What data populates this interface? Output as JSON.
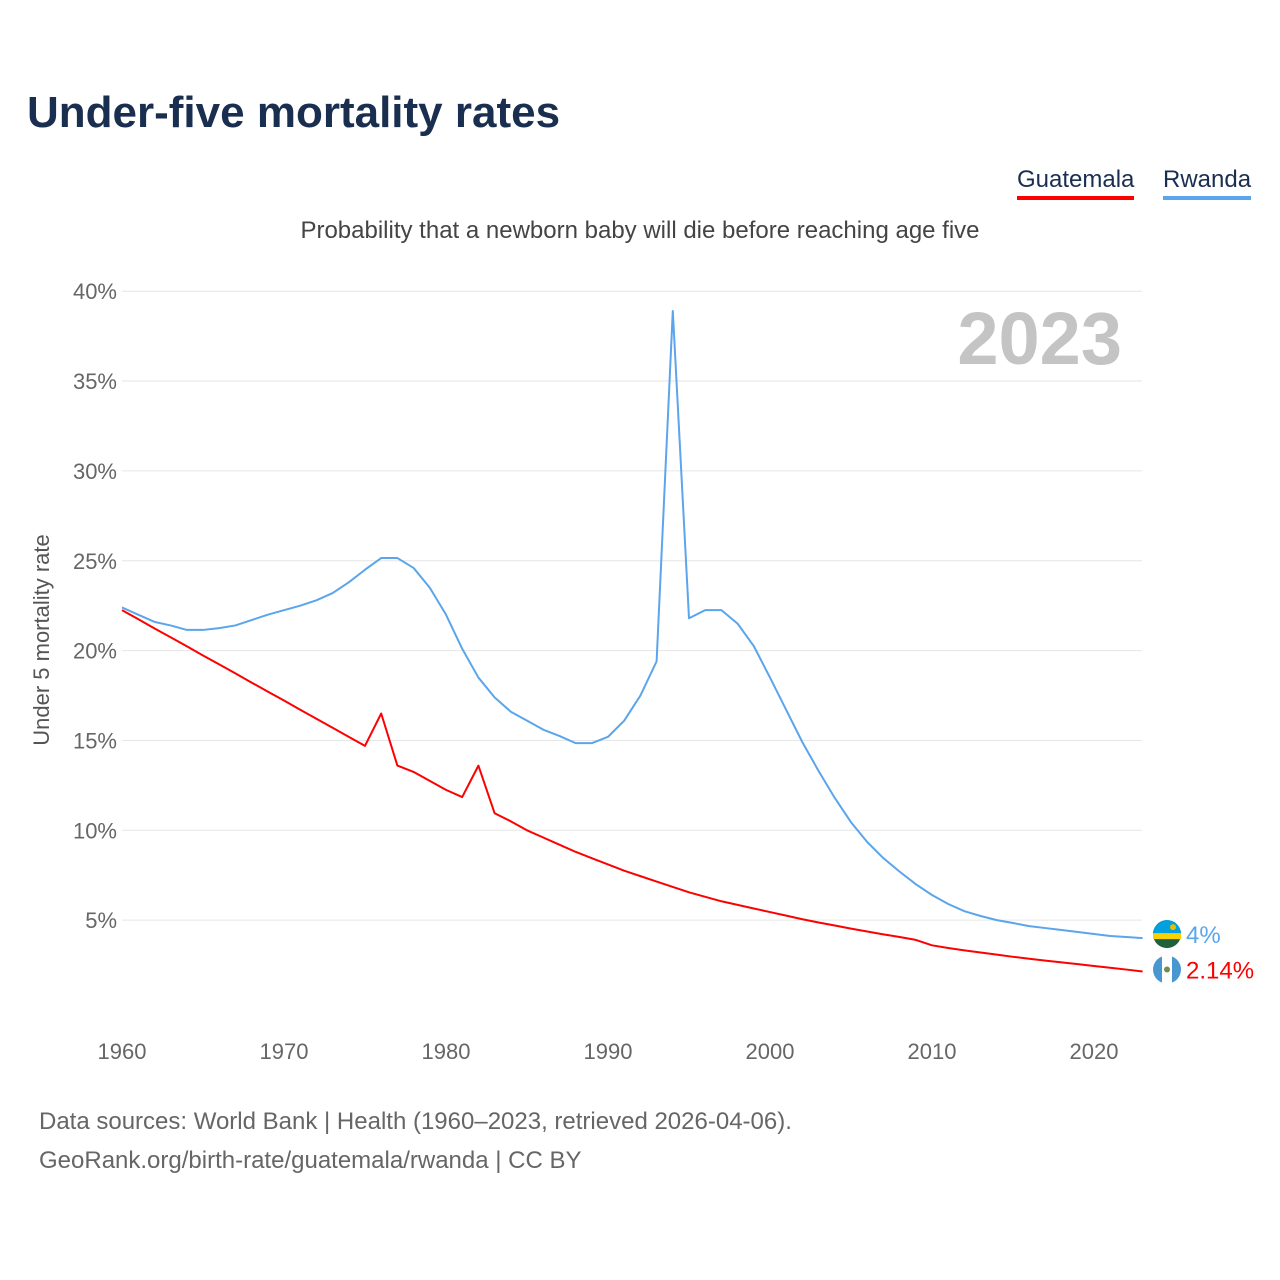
{
  "title": "Under-five mortality rates",
  "subtitle": "Probability that a newborn baby will die before reaching age five",
  "current_year": "2023",
  "sources": [
    "Data sources: World Bank | Health (1960–2023, retrieved 2026-04-06).",
    "GeoRank.org/birth-rate/guatemala/rwanda | CC BY"
  ],
  "chart_data": {
    "type": "line",
    "title": "Under-five mortality rates",
    "ylabel": "Under 5 mortality rate",
    "xlabel": "",
    "ylim": [
      0,
      40
    ],
    "xlim": [
      1960,
      2023
    ],
    "yticks": [
      "5%",
      "10%",
      "15%",
      "20%",
      "25%",
      "30%",
      "35%",
      "40%"
    ],
    "ytick_values": [
      5,
      10,
      15,
      20,
      25,
      30,
      35,
      40
    ],
    "xticks": [
      "1960",
      "1970",
      "1980",
      "1990",
      "2000",
      "2010",
      "2020"
    ],
    "xtick_values": [
      1960,
      1970,
      1980,
      1990,
      2000,
      2010,
      2020
    ],
    "grid": true,
    "legend_position": "top-right",
    "x_start": 1960,
    "series": [
      {
        "name": "Guatemala",
        "color": "#ff0000",
        "end_label": "2.14%",
        "values": [
          22.25,
          21.75,
          21.24,
          20.74,
          20.24,
          19.73,
          19.23,
          18.73,
          18.22,
          17.72,
          17.22,
          16.71,
          16.21,
          15.71,
          15.2,
          14.7,
          16.5,
          13.6,
          13.25,
          12.75,
          12.25,
          11.85,
          13.6,
          10.95,
          10.5,
          10.0,
          9.6,
          9.2,
          8.8,
          8.45,
          8.1,
          7.75,
          7.45,
          7.15,
          6.85,
          6.55,
          6.3,
          6.05,
          5.85,
          5.65,
          5.45,
          5.25,
          5.05,
          4.87,
          4.7,
          4.53,
          4.37,
          4.21,
          4.06,
          3.9,
          3.6,
          3.45,
          3.32,
          3.2,
          3.08,
          2.96,
          2.85,
          2.75,
          2.65,
          2.55,
          2.45,
          2.35,
          2.25,
          2.14
        ]
      },
      {
        "name": "Rwanda",
        "color": "#5aa5eb",
        "end_label": "4%",
        "values": [
          22.4,
          22.0,
          21.6,
          21.4,
          21.15,
          21.15,
          21.25,
          21.4,
          21.7,
          22.0,
          22.25,
          22.5,
          22.8,
          23.2,
          23.8,
          24.5,
          25.15,
          25.15,
          24.6,
          23.5,
          22.0,
          20.1,
          18.5,
          17.4,
          16.6,
          16.1,
          15.6,
          15.25,
          14.85,
          14.85,
          15.2,
          16.1,
          17.5,
          19.4,
          38.9,
          21.8,
          22.25,
          22.25,
          21.5,
          20.25,
          18.5,
          16.7,
          14.9,
          13.3,
          11.8,
          10.45,
          9.35,
          8.45,
          7.7,
          7.0,
          6.4,
          5.9,
          5.5,
          5.23,
          5.0,
          4.84,
          4.67,
          4.56,
          4.45,
          4.34,
          4.23,
          4.12,
          4.06,
          4.0
        ]
      }
    ]
  }
}
